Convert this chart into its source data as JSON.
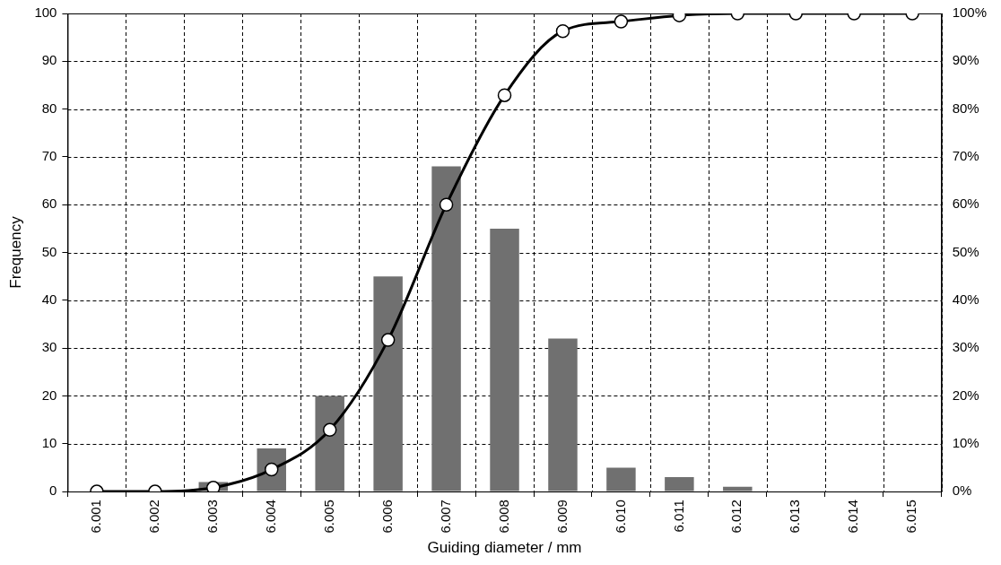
{
  "chart_data": {
    "type": "bar",
    "xlabel": "Guiding diameter / mm",
    "ylabel": "Frequency",
    "categories": [
      "6.001",
      "6.002",
      "6.003",
      "6.004",
      "6.005",
      "6.006",
      "6.007",
      "6.008",
      "6.009",
      "6.010",
      "6.011",
      "6.012",
      "6.013",
      "6.014",
      "6.015"
    ],
    "series": [
      {
        "color": "#707070",
        "values": [
          0,
          0,
          2,
          9,
          20,
          45,
          68,
          55,
          32,
          5,
          3,
          1,
          0,
          0,
          0
        ]
      },
      {
        "type": "line",
        "axis": "y2",
        "color": "#000000",
        "marker": "circle",
        "values": [
          0,
          0,
          0.8,
          4.6,
          12.9,
          31.7,
          60,
          82.9,
          96.3,
          98.3,
          99.6,
          100,
          100,
          100,
          100
        ]
      }
    ],
    "ylim": [
      0,
      100
    ],
    "yticks": [
      0,
      10,
      20,
      30,
      40,
      50,
      60,
      70,
      80,
      90,
      100
    ],
    "y2lim": [
      0,
      100
    ],
    "y2ticks": [
      {
        "value": 0,
        "label": "0%"
      },
      {
        "value": 10,
        "label": "10%"
      },
      {
        "value": 20,
        "label": "20%"
      },
      {
        "value": 30,
        "label": "30%"
      },
      {
        "value": 40,
        "label": "40%"
      },
      {
        "value": 50,
        "label": "50%"
      },
      {
        "value": 60,
        "label": "60%"
      },
      {
        "value": 70,
        "label": "70%"
      },
      {
        "value": 80,
        "label": "80%"
      },
      {
        "value": 90,
        "label": "90%"
      },
      {
        "value": 100,
        "label": "100%"
      }
    ],
    "grid": true,
    "legend": false
  }
}
